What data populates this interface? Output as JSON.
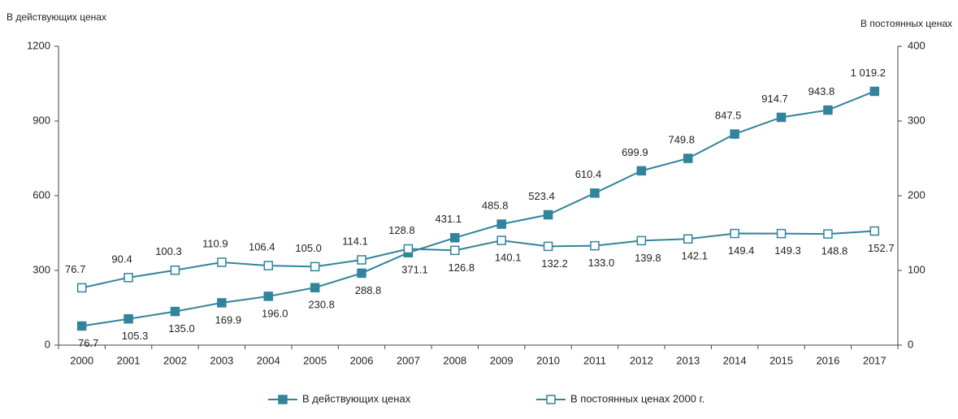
{
  "chart_data": {
    "type": "line",
    "ylabel": "В действующих ценах",
    "y2label": "В постоянных ценах",
    "categories": [
      "2000",
      "2001",
      "2002",
      "2003",
      "2004",
      "2005",
      "2006",
      "2007",
      "2008",
      "2009",
      "2010",
      "2011",
      "2012",
      "2013",
      "2014",
      "2015",
      "2016",
      "2017"
    ],
    "ylim": [
      0,
      1200
    ],
    "yticks": [
      0,
      300,
      600,
      900,
      1200
    ],
    "y2lim": [
      0,
      400
    ],
    "y2ticks": [
      0,
      100,
      200,
      300,
      400
    ],
    "grid": false,
    "series": [
      {
        "name": "В действующих ценах",
        "color": "#31849b",
        "marker": "square-filled",
        "values": [
          76.7,
          105.3,
          135.0,
          169.9,
          196.0,
          230.8,
          288.8,
          371.1,
          431.1,
          485.8,
          523.4,
          610.4,
          699.9,
          749.8,
          847.5,
          914.7,
          943.8,
          1019.2
        ],
        "value_labels": [
          "76.7",
          "105.3",
          "135.0",
          "169.9",
          "196.0",
          "230.8",
          "288.8",
          "371.1",
          "431.1",
          "485.8",
          "523.4",
          "610.4",
          "699.9",
          "749.8",
          "847.5",
          "914.7",
          "943.8",
          "1 019.2"
        ]
      },
      {
        "name": "В постоянных ценах 2000 г.",
        "color": "#31849b",
        "marker": "square-open",
        "axis": "y2",
        "values": [
          76.7,
          90.4,
          100.3,
          110.9,
          106.4,
          105.0,
          114.1,
          128.8,
          126.8,
          140.1,
          132.2,
          133.0,
          139.8,
          142.1,
          149.4,
          149.3,
          148.8,
          152.7
        ],
        "value_labels": [
          "76.7",
          "90.4",
          "100.3",
          "110.9",
          "106.4",
          "105.0",
          "114.1",
          "128.8",
          "126.8",
          "140.1",
          "132.2",
          "133.0",
          "139.8",
          "142.1",
          "149.4",
          "149.3",
          "148.8",
          "152.7"
        ]
      }
    ]
  }
}
